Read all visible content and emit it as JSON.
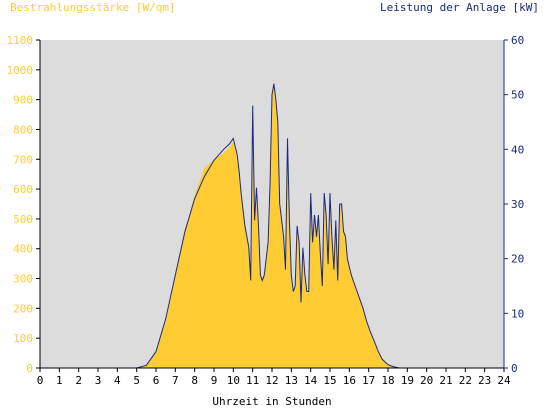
{
  "chart_data": {
    "type": "area",
    "left_axis_title": "Bestrahlungsstärke [W/qm]",
    "right_axis_title": "Leistung der Anlage [kW]",
    "xlabel": "Uhrzeit in Stunden",
    "xlim": [
      0,
      24
    ],
    "ylim_left": [
      0,
      1100
    ],
    "ylim_right": [
      0,
      60
    ],
    "x_ticks": [
      0,
      1,
      2,
      3,
      4,
      5,
      6,
      7,
      8,
      9,
      10,
      11,
      12,
      13,
      14,
      15,
      16,
      17,
      18,
      19,
      20,
      21,
      22,
      23,
      24
    ],
    "y_left_ticks": [
      0,
      100,
      200,
      300,
      400,
      500,
      600,
      700,
      800,
      900,
      1000,
      1100
    ],
    "y_right_ticks": [
      0,
      10,
      20,
      30,
      40,
      50,
      60
    ],
    "grid": false,
    "colors": {
      "plot_background": "#dcdcdc",
      "irradiance_fill": "#ffcc33",
      "power_line": "#1a2a80",
      "left_axis_text": "#ffcc33",
      "right_axis_text": "#1a2a80"
    },
    "series": [
      {
        "axis": "left",
        "style": "filled-area",
        "x": [
          0,
          5.0,
          5.5,
          6.0,
          6.5,
          7.0,
          7.5,
          8.0,
          8.5,
          9.0,
          9.5,
          9.8,
          10.0,
          10.2,
          10.3,
          10.4,
          10.5,
          10.6,
          10.7,
          10.8,
          10.9,
          11.0,
          11.05,
          11.1,
          11.2,
          11.3,
          11.4,
          11.5,
          11.6,
          11.7,
          11.8,
          11.9,
          12.0,
          12.1,
          12.2,
          12.3,
          12.4,
          12.5,
          12.6,
          12.7,
          12.8,
          12.9,
          13.0,
          13.1,
          13.2,
          13.3,
          13.4,
          13.5,
          13.6,
          13.7,
          13.8,
          13.9,
          14.0,
          14.1,
          14.2,
          14.3,
          14.4,
          14.5,
          14.6,
          14.7,
          14.8,
          14.9,
          15.0,
          15.1,
          15.2,
          15.3,
          15.4,
          15.5,
          15.6,
          15.7,
          15.8,
          15.9,
          16.0,
          16.1,
          16.2,
          16.3,
          16.4,
          16.5,
          16.7,
          16.9,
          17.1,
          17.3,
          17.5,
          17.7,
          18.0,
          18.3,
          18.6,
          19.0,
          19.3,
          19.6,
          20.0,
          24
        ],
        "values": [
          0,
          0,
          10,
          55,
          160,
          320,
          460,
          580,
          670,
          700,
          720,
          740,
          760,
          720,
          660,
          590,
          540,
          490,
          440,
          420,
          300,
          870,
          690,
          500,
          610,
          470,
          310,
          300,
          320,
          370,
          430,
          620,
          920,
          960,
          900,
          830,
          560,
          500,
          440,
          330,
          770,
          500,
          320,
          260,
          280,
          470,
          420,
          220,
          400,
          310,
          250,
          260,
          580,
          420,
          510,
          440,
          520,
          380,
          270,
          580,
          520,
          350,
          580,
          440,
          330,
          490,
          300,
          550,
          550,
          460,
          450,
          370,
          340,
          320,
          300,
          280,
          260,
          240,
          200,
          160,
          120,
          90,
          55,
          30,
          12,
          5,
          0,
          0,
          0,
          0,
          0,
          0
        ]
      },
      {
        "axis": "right",
        "style": "line",
        "x": [
          0,
          5.0,
          5.5,
          6.0,
          6.5,
          7.0,
          7.5,
          8.0,
          8.5,
          9.0,
          9.5,
          9.8,
          10.0,
          10.2,
          10.3,
          10.4,
          10.5,
          10.6,
          10.7,
          10.8,
          10.9,
          11.0,
          11.05,
          11.1,
          11.2,
          11.3,
          11.4,
          11.5,
          11.6,
          11.7,
          11.8,
          11.9,
          12.0,
          12.1,
          12.2,
          12.3,
          12.4,
          12.5,
          12.6,
          12.7,
          12.8,
          12.9,
          13.0,
          13.1,
          13.2,
          13.3,
          13.4,
          13.5,
          13.6,
          13.7,
          13.8,
          13.9,
          14.0,
          14.1,
          14.2,
          14.3,
          14.4,
          14.5,
          14.6,
          14.7,
          14.8,
          14.9,
          15.0,
          15.1,
          15.2,
          15.3,
          15.4,
          15.5,
          15.6,
          15.7,
          15.8,
          15.9,
          16.0,
          16.1,
          16.2,
          16.3,
          16.4,
          16.5,
          16.7,
          16.9,
          17.1,
          17.3,
          17.5,
          17.7,
          18.0,
          18.3,
          18.6,
          19.0,
          19.3,
          19.6,
          20.0,
          24
        ],
        "values": [
          0,
          0,
          0.5,
          3,
          9,
          17,
          25,
          31,
          35,
          38,
          40,
          41,
          42,
          39,
          36,
          32,
          29,
          26,
          24,
          22,
          16,
          48,
          38,
          27,
          33,
          26,
          17,
          16,
          17,
          20,
          23,
          34,
          50,
          52,
          49,
          45,
          30,
          27,
          24,
          18,
          42,
          27,
          17,
          14,
          15,
          26,
          23,
          12,
          22,
          17,
          14,
          14,
          32,
          23,
          28,
          24,
          28,
          21,
          15,
          32,
          28,
          19,
          32,
          24,
          18,
          27,
          16,
          30,
          30,
          25,
          24,
          20,
          18.5,
          17,
          16,
          15,
          14,
          13,
          11,
          8.5,
          6.5,
          4.8,
          3,
          1.6,
          0.6,
          0.2,
          0,
          0,
          0,
          0,
          0,
          0
        ]
      }
    ]
  }
}
